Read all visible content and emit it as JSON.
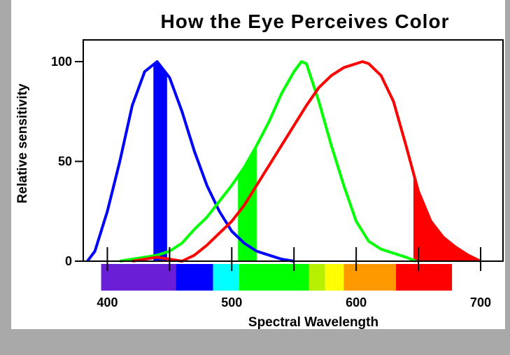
{
  "chart_data": {
    "type": "line",
    "title": "How the Eye Perceives Color",
    "xlabel": "Spectral Wavelength",
    "ylabel": "Relative sensitivity",
    "xlim": [
      380,
      720
    ],
    "ylim": [
      0,
      100
    ],
    "x_ticks": [
      400,
      450,
      500,
      550,
      600,
      650,
      700
    ],
    "x_tick_labels": [
      {
        "x": 400,
        "label": "400"
      },
      {
        "x": 500,
        "label": "500"
      },
      {
        "x": 600,
        "label": "600"
      },
      {
        "x": 700,
        "label": "700"
      }
    ],
    "y_ticks": [
      {
        "y": 100,
        "label": "100"
      },
      {
        "y": 50,
        "label": "50"
      },
      {
        "y": 0,
        "label": "0"
      }
    ],
    "series": [
      {
        "color": "#0000ff",
        "points": [
          [
            384,
            0
          ],
          [
            390,
            5
          ],
          [
            400,
            25
          ],
          [
            410,
            50
          ],
          [
            420,
            78
          ],
          [
            430,
            95
          ],
          [
            440,
            100
          ],
          [
            450,
            92
          ],
          [
            460,
            75
          ],
          [
            470,
            55
          ],
          [
            480,
            38
          ],
          [
            490,
            25
          ],
          [
            500,
            15
          ],
          [
            510,
            9
          ],
          [
            520,
            5
          ],
          [
            530,
            3
          ],
          [
            540,
            1
          ],
          [
            550,
            0
          ]
        ]
      },
      {
        "color": "#00ff00",
        "points": [
          [
            410,
            0
          ],
          [
            420,
            1
          ],
          [
            430,
            2
          ],
          [
            440,
            3
          ],
          [
            450,
            5
          ],
          [
            460,
            9
          ],
          [
            470,
            16
          ],
          [
            480,
            22
          ],
          [
            490,
            30
          ],
          [
            500,
            38
          ],
          [
            510,
            47
          ],
          [
            520,
            58
          ],
          [
            530,
            70
          ],
          [
            540,
            84
          ],
          [
            550,
            95
          ],
          [
            556,
            100
          ],
          [
            560,
            99
          ],
          [
            570,
            80
          ],
          [
            580,
            58
          ],
          [
            590,
            38
          ],
          [
            600,
            20
          ],
          [
            610,
            10
          ],
          [
            620,
            6
          ],
          [
            630,
            4
          ],
          [
            640,
            2
          ],
          [
            648,
            0
          ]
        ]
      },
      {
        "color": "#ff0000",
        "points": [
          [
            420,
            0
          ],
          [
            430,
            1
          ],
          [
            440,
            2
          ],
          [
            450,
            1
          ],
          [
            460,
            0
          ],
          [
            470,
            3
          ],
          [
            480,
            8
          ],
          [
            490,
            14
          ],
          [
            500,
            20
          ],
          [
            510,
            28
          ],
          [
            520,
            38
          ],
          [
            530,
            48
          ],
          [
            540,
            58
          ],
          [
            550,
            68
          ],
          [
            560,
            78
          ],
          [
            570,
            87
          ],
          [
            580,
            93
          ],
          [
            590,
            97
          ],
          [
            600,
            99
          ],
          [
            605,
            100
          ],
          [
            610,
            99
          ],
          [
            620,
            93
          ],
          [
            630,
            80
          ],
          [
            640,
            58
          ],
          [
            650,
            35
          ],
          [
            660,
            20
          ],
          [
            670,
            12
          ],
          [
            680,
            7
          ],
          [
            690,
            3
          ],
          [
            700,
            0
          ]
        ]
      }
    ],
    "highlight_bands": [
      {
        "color": "#0000ff",
        "from": 437,
        "to": 448
      },
      {
        "color": "#00ff00",
        "from": 505,
        "to": 520
      },
      {
        "color": "#ff0000",
        "from": 646,
        "to": 700
      }
    ],
    "spectrum_bar": [
      {
        "color": "#6a1fd6",
        "from": 395,
        "to": 455
      },
      {
        "color": "#0000ff",
        "from": 455,
        "to": 485
      },
      {
        "color": "#00ffff",
        "from": 485,
        "to": 506
      },
      {
        "color": "#00ff00",
        "from": 506,
        "to": 562
      },
      {
        "color": "#b6f000",
        "from": 562,
        "to": 575
      },
      {
        "color": "#ffff00",
        "from": 575,
        "to": 590
      },
      {
        "color": "#ff9900",
        "from": 590,
        "to": 632
      },
      {
        "color": "#ff0000",
        "from": 632,
        "to": 677
      }
    ]
  }
}
